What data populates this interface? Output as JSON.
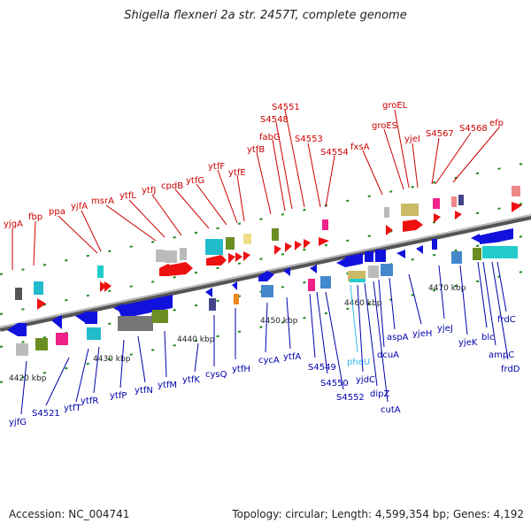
{
  "title": "Shigella flexneri 2a str. 2457T, complete genome",
  "footer": {
    "accession": "Accession: NC_004741",
    "summary": "Topology: circular; Length: 4,599,354 bp; Genes: 4,192"
  },
  "colors": {
    "top_labels": "#cc0000",
    "bottom_labels": "#0000aa",
    "highlight_label": "#33bbee",
    "axis": "#888888",
    "forward_genes": "#ee1111",
    "reverse_genes": "#1111dd"
  },
  "scale_labels": [
    "4420 kbp",
    "4430 kbp",
    "4440 kbp",
    "4450 kbp",
    "4460 kbp",
    "4470 kbp"
  ],
  "top_labels": [
    "yjgA",
    "fbp",
    "ppa",
    "yjfA",
    "msrA",
    "ytfL",
    "ytfJ",
    "cpdB",
    "ytfG",
    "ytfF",
    "ytfE",
    "ytfB",
    "fabG",
    "S4548",
    "S4551",
    "S4553",
    "S4554",
    "fxsA",
    "groES",
    "groEL",
    "yjeI",
    "S4567",
    "S4568",
    "efp"
  ],
  "bottom_labels": [
    "yjfG",
    "S4521",
    "ytfT",
    "ytfR",
    "ytfP",
    "ytfN",
    "ytfM",
    "ytfK",
    "cysQ",
    "ytfH",
    "cycA",
    "ytfA",
    "S4549",
    "S4550",
    "S4552",
    "pheU",
    "yjdC",
    "dipZ",
    "cutA",
    "dcuA",
    "aspA",
    "yjeH",
    "yjeJ",
    "yjeK",
    "blc",
    "ampC",
    "frdD",
    "frdC"
  ],
  "highlight_label": "pheU"
}
